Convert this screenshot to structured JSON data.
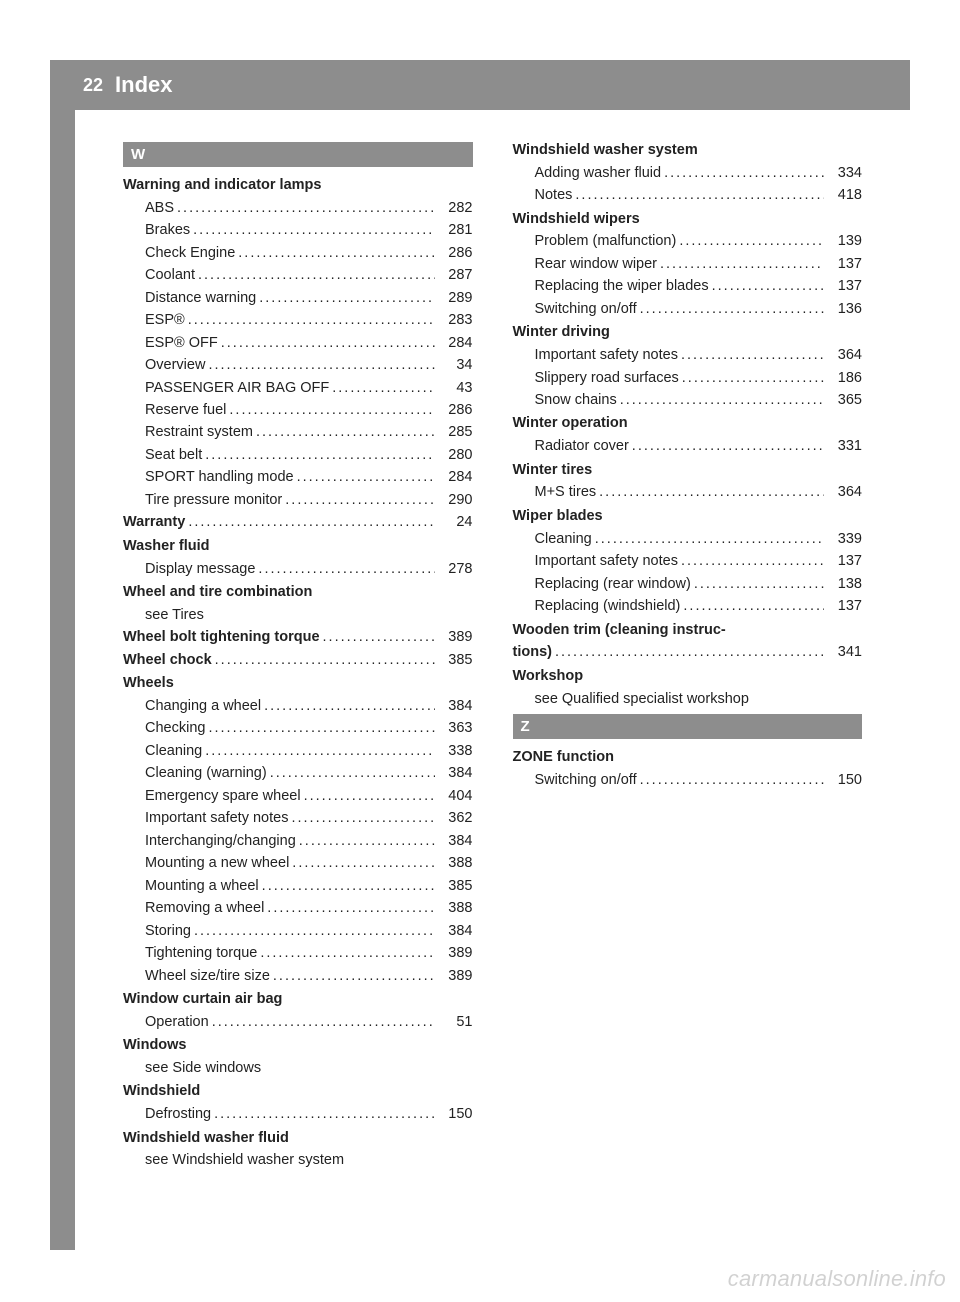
{
  "header": {
    "page_num": "22",
    "title": "Index"
  },
  "colors": {
    "header_bg": "#8d8d8d",
    "header_text": "#ffffff",
    "body_text": "#222222",
    "page_bg": "#ffffff",
    "sidebar_bg": "#8d8d8d",
    "watermark": "rgba(0,0,0,0.18)"
  },
  "typography": {
    "base_size_pt": 11,
    "heading_weight": "bold"
  },
  "watermark": "carmanualsonline.info",
  "left_col": [
    {
      "type": "section",
      "letter": "W"
    },
    {
      "type": "heading",
      "text": "Warning and indicator lamps"
    },
    {
      "type": "sub",
      "label": "ABS",
      "page": "282"
    },
    {
      "type": "sub",
      "label": "Brakes",
      "page": "281"
    },
    {
      "type": "sub",
      "label": "Check Engine",
      "page": "286"
    },
    {
      "type": "sub",
      "label": "Coolant",
      "page": "287"
    },
    {
      "type": "sub",
      "label": "Distance warning",
      "page": "289"
    },
    {
      "type": "sub",
      "label": "ESP®",
      "page": "283"
    },
    {
      "type": "sub",
      "label": "ESP® OFF",
      "page": "284"
    },
    {
      "type": "sub",
      "label": "Overview",
      "page": "34"
    },
    {
      "type": "sub",
      "label": "PASSENGER AIR BAG OFF",
      "page": "43"
    },
    {
      "type": "sub",
      "label": "Reserve fuel",
      "page": "286"
    },
    {
      "type": "sub",
      "label": "Restraint system",
      "page": "285"
    },
    {
      "type": "sub",
      "label": "Seat belt",
      "page": "280"
    },
    {
      "type": "sub",
      "label": "SPORT handling mode",
      "page": "284"
    },
    {
      "type": "sub",
      "label": "Tire pressure monitor",
      "page": "290"
    },
    {
      "type": "heading_line",
      "label": "Warranty",
      "page": "24"
    },
    {
      "type": "heading",
      "text": "Washer fluid"
    },
    {
      "type": "sub",
      "label": "Display message",
      "page": "278"
    },
    {
      "type": "heading",
      "text": "Wheel and tire combination"
    },
    {
      "type": "see",
      "text": "see Tires"
    },
    {
      "type": "heading_line",
      "label": "Wheel bolt tightening torque",
      "page": "389"
    },
    {
      "type": "heading_line",
      "label": "Wheel chock",
      "page": "385"
    },
    {
      "type": "heading",
      "text": "Wheels"
    },
    {
      "type": "sub",
      "label": "Changing a wheel",
      "page": "384"
    },
    {
      "type": "sub",
      "label": "Checking",
      "page": "363"
    },
    {
      "type": "sub",
      "label": "Cleaning",
      "page": "338"
    },
    {
      "type": "sub",
      "label": "Cleaning (warning)",
      "page": "384"
    },
    {
      "type": "sub",
      "label": "Emergency spare wheel",
      "page": "404"
    },
    {
      "type": "sub",
      "label": "Important safety notes",
      "page": "362"
    },
    {
      "type": "sub",
      "label": "Interchanging/changing",
      "page": "384"
    },
    {
      "type": "sub",
      "label": "Mounting a new wheel",
      "page": "388"
    },
    {
      "type": "sub",
      "label": "Mounting a wheel",
      "page": "385"
    },
    {
      "type": "sub",
      "label": "Removing a wheel",
      "page": "388"
    },
    {
      "type": "sub",
      "label": "Storing",
      "page": "384"
    },
    {
      "type": "sub",
      "label": "Tightening torque",
      "page": "389"
    },
    {
      "type": "sub",
      "label": "Wheel size/tire size",
      "page": "389"
    },
    {
      "type": "heading",
      "text": "Window curtain air bag"
    },
    {
      "type": "sub",
      "label": "Operation",
      "page": "51"
    },
    {
      "type": "heading",
      "text": "Windows"
    },
    {
      "type": "see",
      "text": "see Side windows"
    },
    {
      "type": "heading",
      "text": "Windshield"
    },
    {
      "type": "sub",
      "label": "Defrosting",
      "page": "150"
    },
    {
      "type": "heading",
      "text": "Windshield washer fluid"
    },
    {
      "type": "see",
      "text": "see Windshield washer system"
    }
  ],
  "right_col": [
    {
      "type": "heading",
      "text": "Windshield washer system"
    },
    {
      "type": "sub",
      "label": "Adding washer fluid",
      "page": "334"
    },
    {
      "type": "sub",
      "label": "Notes",
      "page": "418"
    },
    {
      "type": "heading",
      "text": "Windshield wipers"
    },
    {
      "type": "sub",
      "label": "Problem (malfunction)",
      "page": "139"
    },
    {
      "type": "sub",
      "label": "Rear window wiper",
      "page": "137"
    },
    {
      "type": "sub",
      "label": "Replacing the wiper blades",
      "page": "137"
    },
    {
      "type": "sub",
      "label": "Switching on/off",
      "page": "136"
    },
    {
      "type": "heading",
      "text": "Winter driving"
    },
    {
      "type": "sub",
      "label": "Important safety notes",
      "page": "364"
    },
    {
      "type": "sub",
      "label": "Slippery road surfaces",
      "page": "186"
    },
    {
      "type": "sub",
      "label": "Snow chains",
      "page": "365"
    },
    {
      "type": "heading",
      "text": "Winter operation"
    },
    {
      "type": "sub",
      "label": "Radiator cover",
      "page": "331"
    },
    {
      "type": "heading",
      "text": "Winter tires"
    },
    {
      "type": "sub",
      "label": "M+S tires",
      "page": "364"
    },
    {
      "type": "heading",
      "text": "Wiper blades"
    },
    {
      "type": "sub",
      "label": "Cleaning",
      "page": "339"
    },
    {
      "type": "sub",
      "label": "Important safety notes",
      "page": "137"
    },
    {
      "type": "sub",
      "label": "Replacing (rear window)",
      "page": "138"
    },
    {
      "type": "sub",
      "label": "Replacing (windshield)",
      "page": "137"
    },
    {
      "type": "heading_line",
      "label": "Wooden trim (cleaning instruc-\ntions)",
      "page": "341"
    },
    {
      "type": "heading",
      "text": "Workshop"
    },
    {
      "type": "see",
      "text": "see Qualified specialist workshop"
    },
    {
      "type": "section",
      "letter": "Z"
    },
    {
      "type": "heading",
      "text": "ZONE function"
    },
    {
      "type": "sub",
      "label": "Switching on/off",
      "page": "150"
    }
  ]
}
